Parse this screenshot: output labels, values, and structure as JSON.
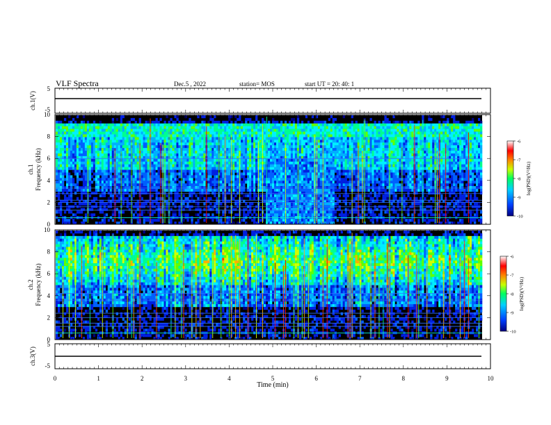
{
  "header": {
    "title": "VLF Spectra",
    "date": "Dec.5  , 2022",
    "station": "station= MOS",
    "start": "start  UT  =   20: 40: 1"
  },
  "chart_data": [
    {
      "type": "line",
      "name": "ch1-waveform",
      "ylabel": "ch.1(V)",
      "ylim": [
        -5,
        5
      ],
      "yticks": [
        "5",
        "-5"
      ],
      "xlim": [
        0,
        10
      ]
    },
    {
      "type": "heatmap",
      "name": "ch1-spectrogram",
      "ylabel": "ch.1\nFrequency (kHz)",
      "ylabel_lines": [
        "ch.1",
        "Frequency (kHz)"
      ],
      "xlim": [
        0,
        10
      ],
      "ylim": [
        0,
        10
      ],
      "yticks": [
        "0",
        "2",
        "4",
        "6",
        "8",
        "10"
      ],
      "colorbar": {
        "label": "log(PSD)(V²/Hz)",
        "min": -10,
        "max": -6,
        "ticks": [
          "-6",
          "-7",
          "-8",
          "-9",
          "-10"
        ]
      }
    },
    {
      "type": "heatmap",
      "name": "ch2-spectrogram",
      "ylabel_lines": [
        "ch.2",
        "Frequency (kHz)"
      ],
      "xlim": [
        0,
        10
      ],
      "ylim": [
        0,
        10
      ],
      "yticks": [
        "0",
        "2",
        "4",
        "6",
        "8",
        "10"
      ],
      "colorbar": {
        "label": "log(PSD)(V²/Hz)",
        "min": -10,
        "max": -6,
        "ticks": [
          "-6",
          "-7",
          "-8",
          "-9",
          "-10"
        ]
      }
    },
    {
      "type": "line",
      "name": "ch3-waveform",
      "ylabel": "ch.3(V)",
      "ylim": [
        -5,
        5
      ],
      "yticks": [
        "5",
        "-5"
      ],
      "xlim": [
        0,
        10
      ]
    }
  ],
  "xaxis": {
    "label": "Time  (min)",
    "ticks": [
      "0",
      "1",
      "2",
      "3",
      "4",
      "5",
      "6",
      "7",
      "8",
      "9",
      "10"
    ]
  },
  "colors": {
    "background": "#000000",
    "colormap": [
      "#0000a0",
      "#0050ff",
      "#00c8ff",
      "#00ff80",
      "#c8ff00",
      "#ff8000",
      "#ff0000",
      "#ffffff"
    ]
  }
}
